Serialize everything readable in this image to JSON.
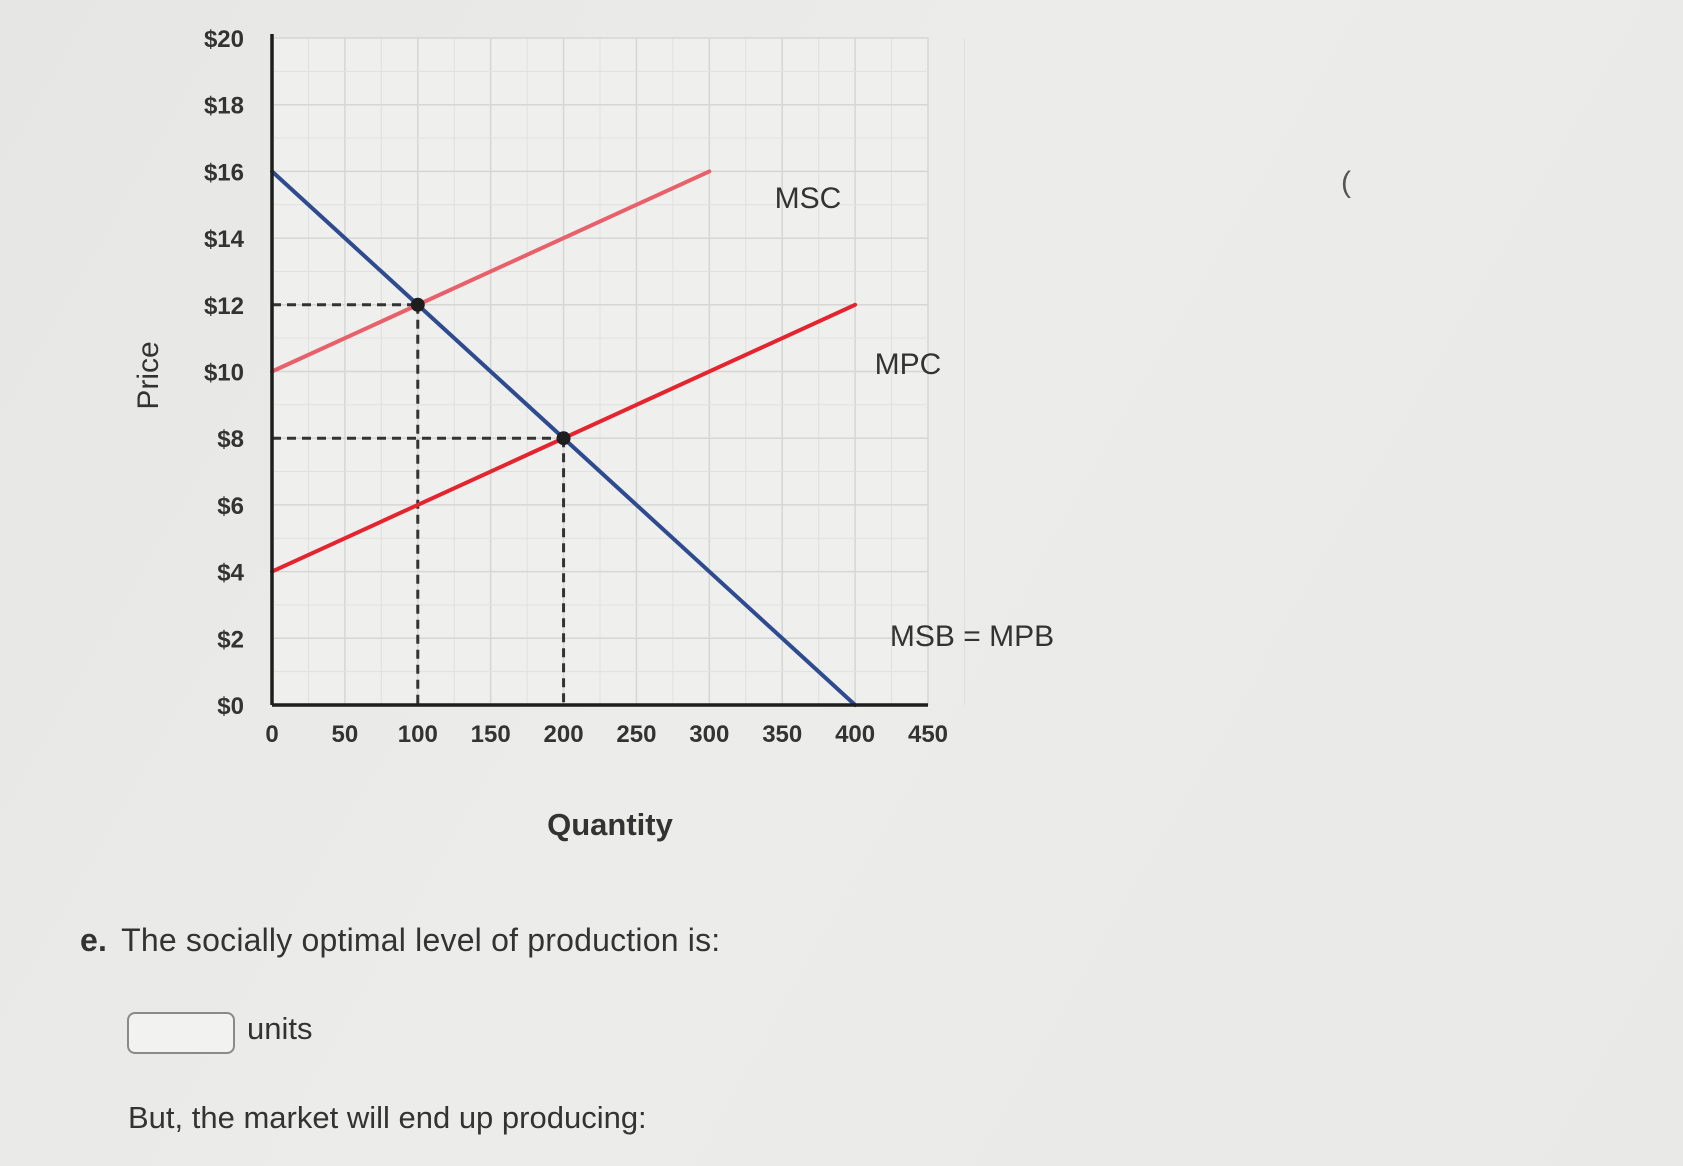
{
  "chart_data": {
    "type": "line",
    "xlabel": "Quantity",
    "ylabel": "Price",
    "x_ticks": [
      "0",
      "50",
      "100",
      "150",
      "200",
      "250",
      "300",
      "350",
      "400",
      "450"
    ],
    "y_ticks": [
      "$0",
      "$2",
      "$4",
      "$6",
      "$8",
      "$10",
      "$12",
      "$14",
      "$16",
      "$18",
      "$20"
    ],
    "xlim": [
      0,
      450
    ],
    "ylim": [
      0,
      20
    ],
    "grid": true,
    "colors": {
      "msc": "#e8606a",
      "mpc": "#e4242f",
      "msb": "#2d4b8e",
      "axis": "#1e1e1e",
      "grid": "#d6d6d6"
    },
    "series": [
      {
        "name": "MSC",
        "x": [
          0,
          300
        ],
        "y": [
          10,
          16
        ]
      },
      {
        "name": "MPC",
        "x": [
          0,
          400
        ],
        "y": [
          4,
          12
        ]
      },
      {
        "name": "MSB = MPB",
        "x": [
          0,
          400
        ],
        "y": [
          16,
          0
        ]
      }
    ],
    "points": [
      {
        "x": 100,
        "y": 12
      },
      {
        "x": 200,
        "y": 8
      }
    ]
  },
  "question": {
    "letter": "e.",
    "text": "The socially optimal level of production is:",
    "units_label": "units",
    "followup": "But, the market will end up producing:"
  },
  "stray_mark": "("
}
